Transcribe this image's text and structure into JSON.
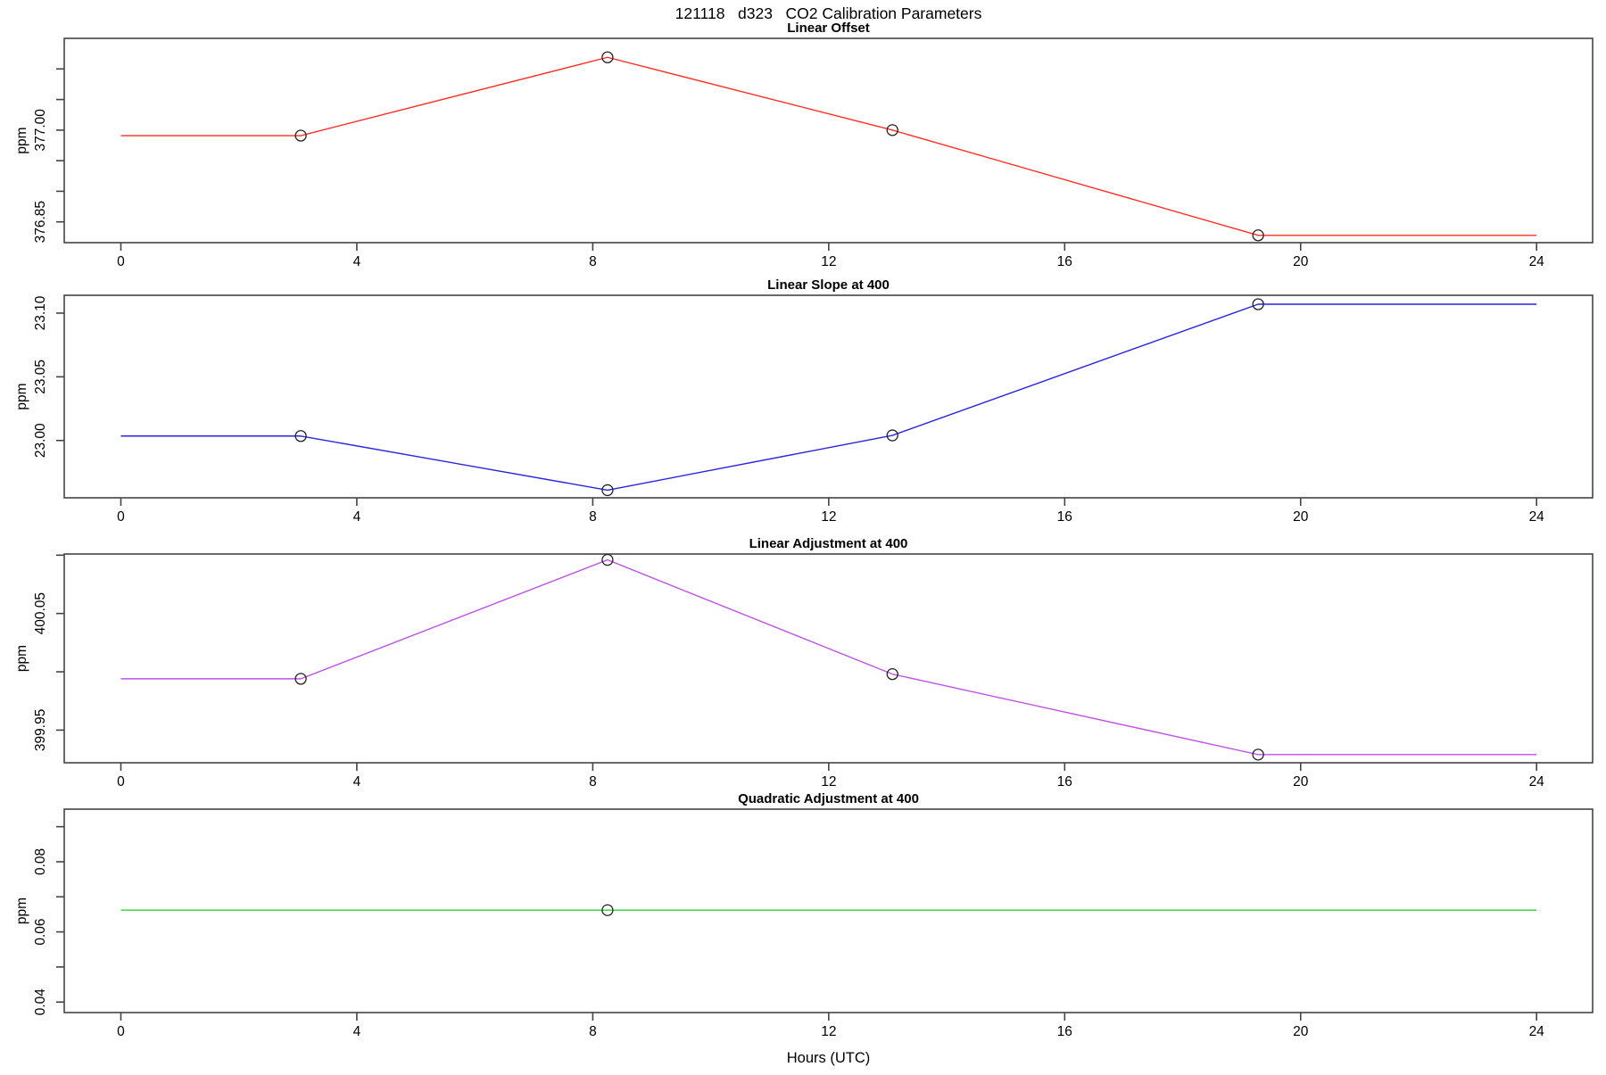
{
  "figure_title": "121118   d323   CO2 Calibration Parameters",
  "x_axis": {
    "label": "Hours (UTC)",
    "ticks": [
      0,
      4,
      8,
      12,
      16,
      20,
      24
    ],
    "lim": [
      -0.96,
      24.95
    ]
  },
  "palette": {
    "axis_color": "#444444",
    "marker_color": "#222222",
    "text_color": "#000000"
  },
  "chart_data": [
    {
      "type": "line",
      "title": "Linear Offset",
      "ylabel": "ppm",
      "color": "#ff2d24",
      "ylim": [
        376.816,
        377.15
      ],
      "y_ticks": [
        377.1,
        377.05,
        377.0,
        376.95,
        376.9,
        376.85
      ],
      "y_tick_labels": [
        "",
        "",
        "377.00",
        "",
        "",
        "376.85"
      ],
      "x": [
        0,
        3.05,
        8.25,
        13.08,
        19.28,
        24
      ],
      "y": [
        376.991,
        376.991,
        377.119,
        377.0,
        376.828,
        376.828
      ],
      "marker_point_indices": [
        1,
        2,
        3,
        4
      ]
    },
    {
      "type": "line",
      "title": "Linear Slope at 400",
      "ylabel": "ppm",
      "color": "#2824e0",
      "ylim": [
        22.955,
        23.114
      ],
      "y_ticks": [
        23.1,
        23.05,
        23.0
      ],
      "y_tick_labels": [
        "23.10",
        "23.05",
        "23.00"
      ],
      "x": [
        0,
        3.05,
        8.25,
        13.08,
        19.28,
        24
      ],
      "y": [
        23.0035,
        23.0035,
        22.961,
        23.004,
        23.107,
        23.107
      ],
      "marker_point_indices": [
        1,
        2,
        3,
        4
      ]
    },
    {
      "type": "line",
      "title": "Linear Adjustment at 400",
      "ylabel": "ppm",
      "color": "#c050e8",
      "ylim": [
        399.922,
        400.101
      ],
      "y_ticks": [
        400.1,
        400.05,
        400.0,
        399.95
      ],
      "y_tick_labels": [
        "",
        "400.05",
        "",
        "399.95"
      ],
      "x": [
        0,
        3.05,
        8.25,
        13.08,
        19.28,
        24
      ],
      "y": [
        399.994,
        399.994,
        400.096,
        399.998,
        399.929,
        399.929
      ],
      "marker_point_indices": [
        1,
        2,
        3,
        4
      ]
    },
    {
      "type": "line",
      "title": "Quadratic Adjustment at 400",
      "ylabel": "ppm",
      "color": "#2fd32f",
      "ylim": [
        0.037,
        0.095
      ],
      "y_ticks": [
        0.09,
        0.08,
        0.07,
        0.06,
        0.05,
        0.04
      ],
      "y_tick_labels": [
        "",
        "0.08",
        "",
        "0.06",
        "",
        "0.04"
      ],
      "x": [
        0,
        8.25,
        24
      ],
      "y": [
        0.0662,
        0.0662,
        0.0662
      ],
      "marker_point_indices": [
        1
      ]
    }
  ]
}
